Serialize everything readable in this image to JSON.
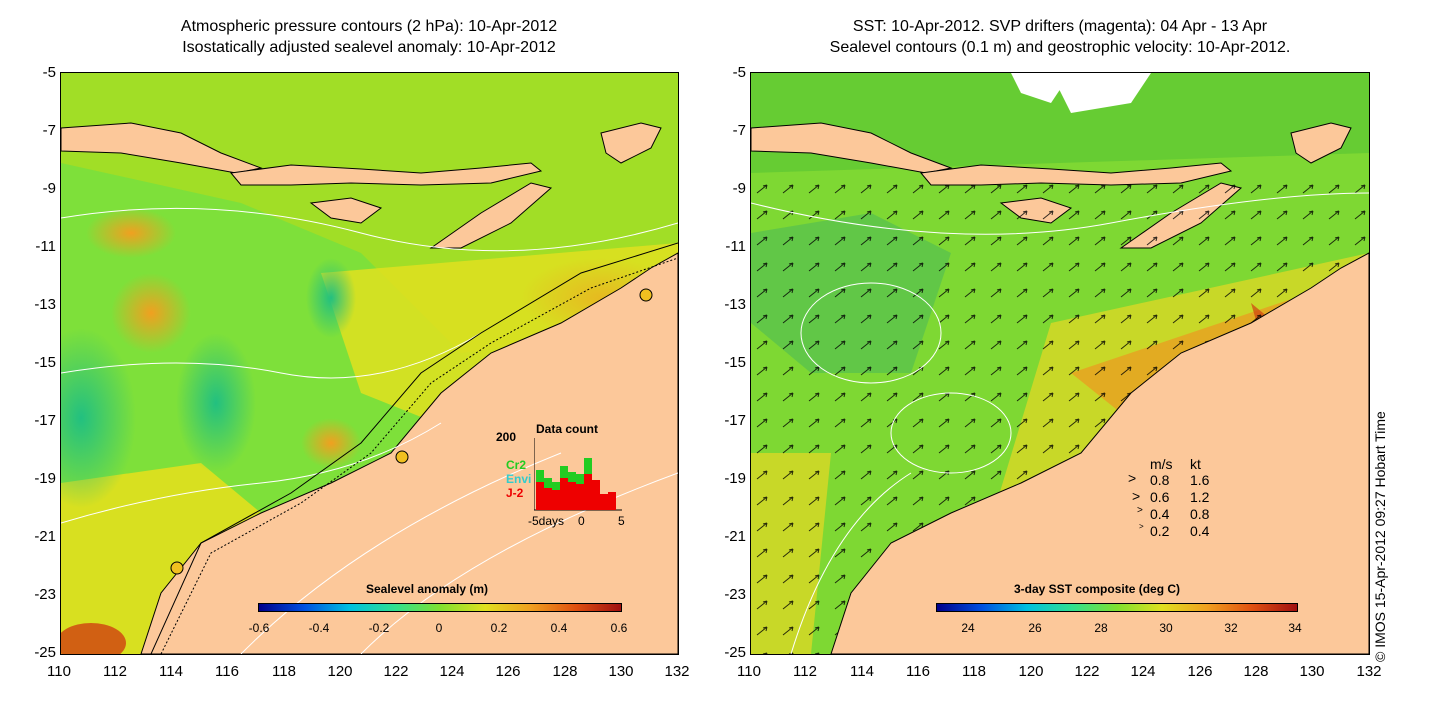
{
  "left_panel": {
    "title_line1": "Atmospheric pressure contours (2 hPa): 10-Apr-2012",
    "title_line2": "Isostatically adjusted sealevel anomaly: 10-Apr-2012",
    "y_ticks": [
      "-5",
      "-7",
      "-9",
      "-11",
      "-13",
      "-15",
      "-17",
      "-19",
      "-21",
      "-23",
      "-25"
    ],
    "x_ticks": [
      "110",
      "112",
      "114",
      "116",
      "118",
      "120",
      "122",
      "124",
      "126",
      "128",
      "130",
      "132"
    ],
    "colorbar_title": "Sealevel anomaly (m)",
    "colorbar_ticks": [
      "-0.6",
      "-0.4",
      "-0.2",
      "0",
      "0.2",
      "0.4",
      "0.6"
    ],
    "histogram": {
      "title": "Data count",
      "ymax_label": "200",
      "x_left_label": "-5days",
      "x_mid_label": "0",
      "x_right_label": "5",
      "legend": [
        {
          "label": "Cr2",
          "color": "#22cc22"
        },
        {
          "label": "Envi",
          "color": "#33cccc"
        },
        {
          "label": "J-2",
          "color": "#ee0000"
        }
      ]
    }
  },
  "right_panel": {
    "title_line1": "SST: 10-Apr-2012. SVP drifters (magenta): 04 Apr - 13 Apr",
    "title_line2": "Sealevel contours (0.1 m) and geostrophic velocity: 10-Apr-2012.",
    "y_ticks": [
      "-5",
      "-7",
      "-9",
      "-11",
      "-13",
      "-15",
      "-17",
      "-19",
      "-21",
      "-23",
      "-25"
    ],
    "x_ticks": [
      "110",
      "112",
      "114",
      "116",
      "118",
      "120",
      "122",
      "124",
      "126",
      "128",
      "130",
      "132"
    ],
    "colorbar_title": "3-day SST composite (deg C)",
    "colorbar_ticks": [
      "24",
      "26",
      "28",
      "30",
      "32",
      "34"
    ],
    "velocity_legend": {
      "header_ms": "m/s",
      "header_kt": "kt",
      "rows": [
        {
          "ms": "0.8",
          "kt": "1.6"
        },
        {
          "ms": "0.6",
          "kt": "1.2"
        },
        {
          "ms": "0.4",
          "kt": "0.8"
        },
        {
          "ms": "0.2",
          "kt": "0.4"
        }
      ]
    }
  },
  "side_label": "© IMOS 15-Apr-2012 09:27 Hobart Time",
  "colors": {
    "land": "#fcc89a",
    "sea_green": "#66dd22",
    "sea_yellow": "#e8e81a",
    "sea_orange": "#f0b020",
    "sea_teal": "#22cc88"
  }
}
